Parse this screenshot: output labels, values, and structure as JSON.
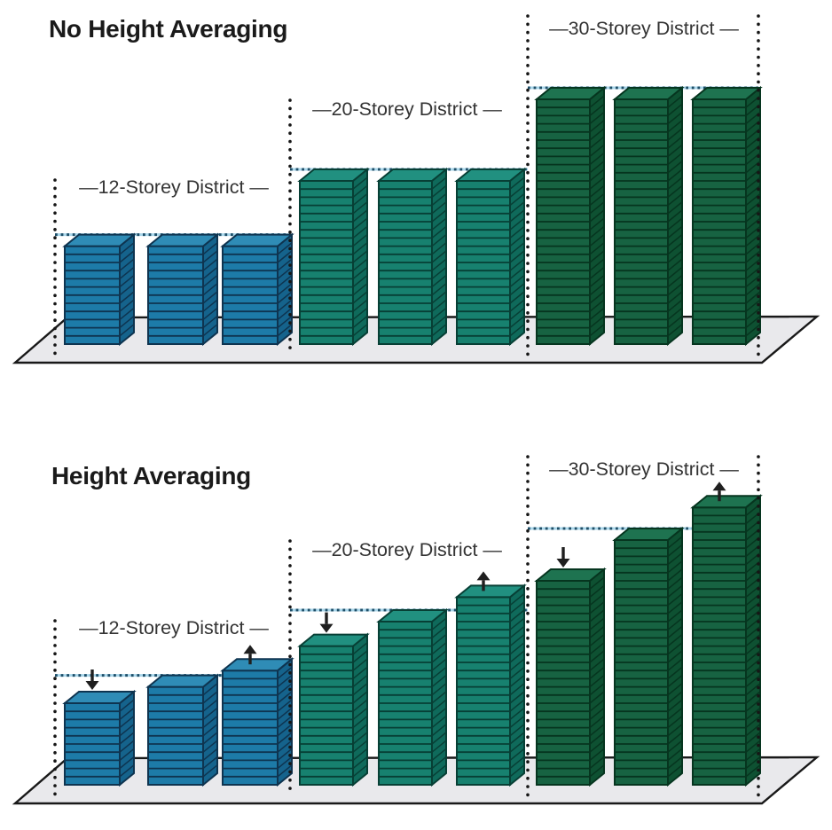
{
  "colors": {
    "blue": {
      "front": "#1d7ba8",
      "side": "#15638c",
      "top": "#2f8cb6",
      "line": "#0e3450"
    },
    "teal": {
      "front": "#17816f",
      "side": "#0f6a5b",
      "top": "#219080",
      "line": "#073f35"
    },
    "green": {
      "front": "#176342",
      "side": "#0e5132",
      "top": "#1e7350",
      "line": "#06351f"
    },
    "ground_fill": "#e9e9ec",
    "outline": "#191919",
    "limit_line_dark": "#1e4f69",
    "limit_line_light": "#a9d6ea",
    "boundary_dots": "#161616",
    "label_text": "#333333",
    "title_text": "#1a1a1a",
    "arrow": "#1f1f1f"
  },
  "panels": [
    {
      "title": "No Height Averaging",
      "districts": [
        {
          "label": "—12-Storey District —",
          "limit_storeys": 12,
          "palette": "blue",
          "buildings": [
            {
              "storeys": 12,
              "arrow": null
            },
            {
              "storeys": 12,
              "arrow": null
            },
            {
              "storeys": 12,
              "arrow": null
            }
          ]
        },
        {
          "label": "—20-Storey District —",
          "limit_storeys": 20,
          "palette": "teal",
          "buildings": [
            {
              "storeys": 20,
              "arrow": null
            },
            {
              "storeys": 20,
              "arrow": null
            },
            {
              "storeys": 20,
              "arrow": null
            }
          ]
        },
        {
          "label": "—30-Storey District —",
          "limit_storeys": 30,
          "palette": "green",
          "buildings": [
            {
              "storeys": 30,
              "arrow": null
            },
            {
              "storeys": 30,
              "arrow": null
            },
            {
              "storeys": 30,
              "arrow": null
            }
          ]
        }
      ]
    },
    {
      "title": "Height Averaging",
      "districts": [
        {
          "label": "—12-Storey District —",
          "limit_storeys": 12,
          "palette": "blue",
          "buildings": [
            {
              "storeys": 10,
              "arrow": "down"
            },
            {
              "storeys": 12,
              "arrow": null
            },
            {
              "storeys": 14,
              "arrow": "up"
            }
          ]
        },
        {
          "label": "—20-Storey District —",
          "limit_storeys": 20,
          "palette": "teal",
          "buildings": [
            {
              "storeys": 17,
              "arrow": "down"
            },
            {
              "storeys": 20,
              "arrow": null
            },
            {
              "storeys": 23,
              "arrow": "up"
            }
          ]
        },
        {
          "label": "—30-Storey District —",
          "limit_storeys": 30,
          "palette": "green",
          "buildings": [
            {
              "storeys": 25,
              "arrow": "down"
            },
            {
              "storeys": 30,
              "arrow": null
            },
            {
              "storeys": 34,
              "arrow": "up"
            }
          ]
        }
      ]
    }
  ]
}
